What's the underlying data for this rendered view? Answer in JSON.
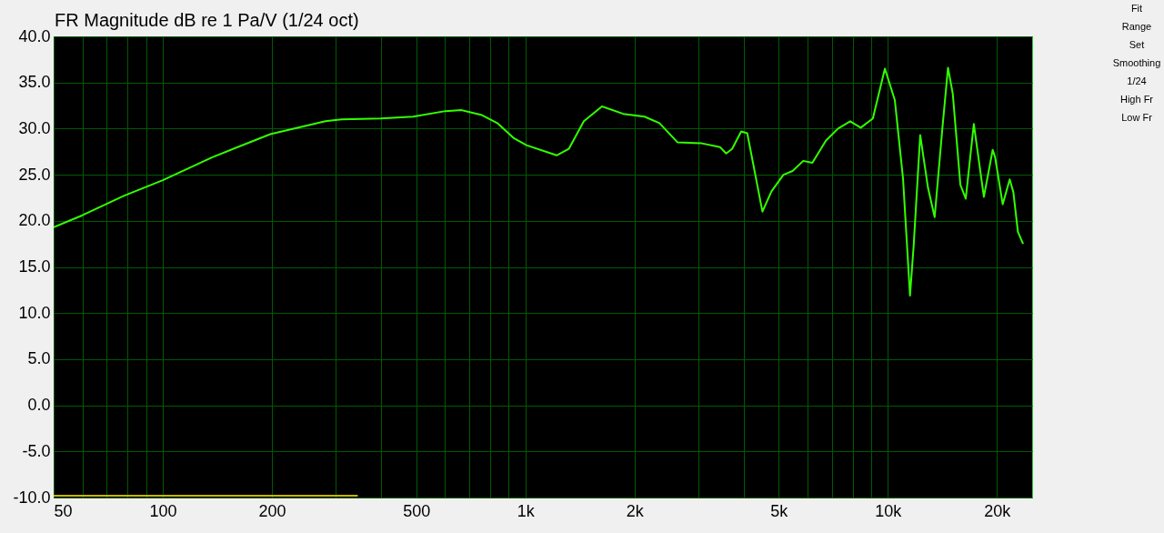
{
  "chart_data": {
    "type": "line",
    "title": "FR Magnitude dB re 1 Pa/V (1/24 oct)",
    "log": "x",
    "grid": true,
    "xlim": [
      50,
      25000
    ],
    "ylim": [
      -10,
      40
    ],
    "xticks": [
      50,
      {
        "value": 60,
        "label": null
      },
      {
        "value": 70,
        "label": null
      },
      {
        "value": 80,
        "label": null
      },
      {
        "value": 90,
        "label": null
      },
      100,
      200,
      {
        "value": 300,
        "label": null
      },
      {
        "value": 400,
        "label": null
      },
      500,
      {
        "value": 600,
        "label": null
      },
      {
        "value": 700,
        "label": null
      },
      {
        "value": 800,
        "label": null
      },
      {
        "value": 900,
        "label": null
      },
      {
        "value": 1000,
        "label": "1k"
      },
      {
        "value": 2000,
        "label": "2k"
      },
      {
        "value": 3000,
        "label": null
      },
      {
        "value": 4000,
        "label": null
      },
      {
        "value": 5000,
        "label": "5k"
      },
      {
        "value": 6000,
        "label": null
      },
      {
        "value": 7000,
        "label": null
      },
      {
        "value": 8000,
        "label": null
      },
      {
        "value": 9000,
        "label": null
      },
      {
        "value": 10000,
        "label": "10k"
      },
      {
        "value": 20000,
        "label": "20k"
      }
    ],
    "yticks": [
      {
        "value": -10,
        "label": "-10.0"
      },
      {
        "value": -5,
        "label": "-5.0"
      },
      {
        "value": 0,
        "label": "0.0"
      },
      {
        "value": 5,
        "label": "5.0"
      },
      {
        "value": 10,
        "label": "10.0"
      },
      {
        "value": 15,
        "label": "15.0"
      },
      {
        "value": 20,
        "label": "20.0"
      },
      {
        "value": 25,
        "label": "25.0"
      },
      {
        "value": 30,
        "label": "30.0"
      },
      {
        "value": 35,
        "label": "35.0"
      },
      {
        "value": 40,
        "label": "40.0"
      }
    ],
    "series": [
      {
        "color": "#33ff00",
        "x": [
          50,
          60,
          78,
          100,
          137,
          198,
          281,
          311,
          399,
          490,
          602,
          667,
          755,
          837,
          927,
          1007,
          1220,
          1318,
          1450,
          1627,
          1862,
          2132,
          2344,
          2631,
          3069,
          3443,
          3580,
          3718,
          3940,
          4094,
          4508,
          4775,
          5152,
          5459,
          5843,
          6190,
          6750,
          7287,
          7871,
          8416,
          9090,
          9812,
          10450,
          11010,
          11510,
          11780,
          12280,
          12900,
          13460,
          14120,
          14650,
          15100,
          15850,
          16400,
          17260,
          18400,
          19460,
          19760,
          20740,
          21680,
          22190,
          22840,
          23600
        ],
        "values": [
          19.3,
          20.6,
          22.7,
          24.4,
          26.9,
          29.4,
          30.8,
          31.0,
          31.1,
          31.3,
          31.9,
          32.0,
          31.5,
          30.6,
          29.0,
          28.2,
          27.1,
          27.8,
          30.8,
          32.4,
          31.6,
          31.3,
          30.6,
          28.5,
          28.4,
          28.0,
          27.3,
          27.8,
          29.7,
          29.5,
          21.0,
          23.2,
          25.0,
          25.4,
          26.5,
          26.3,
          28.7,
          30.0,
          30.8,
          30.1,
          31.1,
          36.5,
          33.1,
          24.6,
          11.9,
          17.3,
          29.3,
          23.6,
          20.4,
          29.8,
          36.6,
          33.8,
          23.9,
          22.4,
          30.5,
          22.6,
          27.7,
          26.9,
          21.8,
          24.5,
          23.1,
          18.8,
          17.5
        ]
      },
      {
        "color": "#c8b400",
        "x": [
          50,
          345
        ],
        "values": [
          -9.8,
          -9.8
        ]
      }
    ],
    "annotations": [
      "Fit",
      "Range",
      "Set",
      "Smoothing",
      "1/24",
      "High Fr",
      "Low Fr"
    ]
  }
}
